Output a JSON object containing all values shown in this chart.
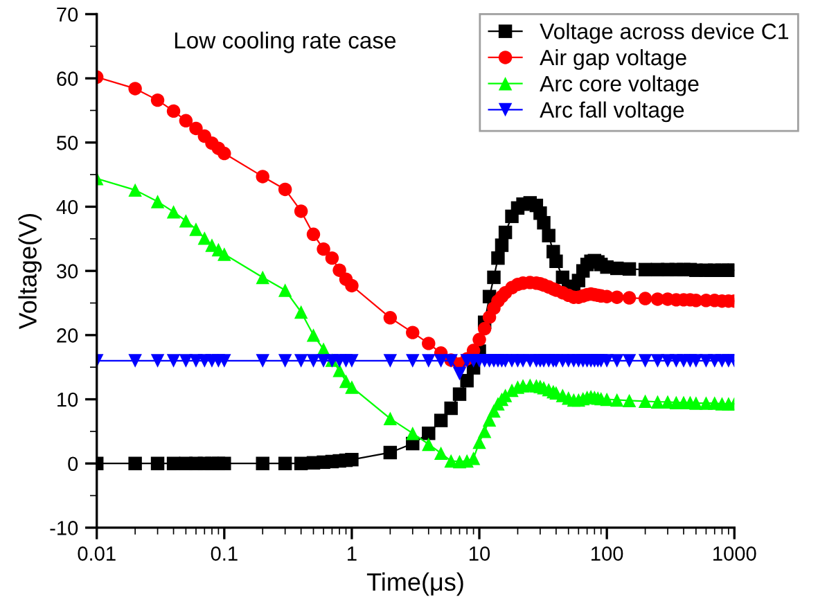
{
  "chart_data": {
    "type": "line",
    "xlabel": "Time(μs)",
    "ylabel": "Voltage(V)",
    "log": "x",
    "annotations": [
      "Low cooling rate case"
    ],
    "x": [
      0.01,
      0.02,
      0.03,
      0.04,
      0.05,
      0.06,
      0.07,
      0.08,
      0.09,
      0.1,
      0.2,
      0.3,
      0.4,
      0.5,
      0.6,
      0.7,
      0.8,
      0.9,
      1,
      2,
      3,
      4,
      5,
      6,
      7,
      8,
      9,
      10,
      11,
      12,
      13,
      14,
      15,
      16,
      18,
      20,
      22,
      25,
      28,
      30,
      32,
      35,
      38,
      40,
      45,
      50,
      55,
      60,
      65,
      70,
      75,
      80,
      85,
      90,
      100,
      120,
      150,
      200,
      250,
      300,
      350,
      400,
      450,
      500,
      600,
      700,
      800,
      900,
      1000
    ],
    "series": [
      {
        "name": "Voltage across device C1",
        "color": "#000000",
        "marker": "square",
        "values": [
          0,
          0,
          0,
          0,
          0,
          0,
          0,
          0,
          0,
          0,
          0,
          0,
          0,
          0.1,
          0.2,
          0.3,
          0.4,
          0.5,
          0.6,
          1.7,
          3.1,
          4.7,
          6.7,
          8.6,
          10.8,
          12.9,
          14.9,
          17.5,
          22,
          26,
          29,
          32,
          34,
          36,
          38.5,
          39.8,
          40.4,
          40.6,
          40.2,
          39,
          37.5,
          35.5,
          33,
          31.5,
          29,
          27.6,
          27.4,
          28.5,
          30,
          31,
          31.5,
          31.6,
          31.4,
          31,
          30.6,
          30.4,
          30.3,
          30.2,
          30.2,
          30.2,
          30.2,
          30.2,
          30.2,
          30.1,
          30.1,
          30.1,
          30.1,
          30.1,
          30.1
        ]
      },
      {
        "name": "Air gap voltage",
        "color": "#ff0000",
        "marker": "circle",
        "values": [
          60.2,
          58.4,
          56.6,
          54.9,
          53.4,
          52.2,
          51.0,
          49.9,
          49.1,
          48.3,
          44.7,
          42.7,
          39.3,
          35.7,
          33.4,
          32.0,
          30.1,
          28.7,
          27.7,
          22.7,
          20.4,
          18.7,
          17.2,
          16.1,
          15.5,
          16.3,
          17.6,
          19.3,
          21,
          22.8,
          24.2,
          25.3,
          26,
          26.6,
          27.4,
          27.9,
          28.1,
          28.2,
          28.1,
          28,
          27.8,
          27.5,
          27.2,
          27,
          26.6,
          26.2,
          25.9,
          25.9,
          26.1,
          26.3,
          26.4,
          26.3,
          26.2,
          26.1,
          26,
          25.9,
          25.8,
          25.7,
          25.6,
          25.6,
          25.5,
          25.5,
          25.5,
          25.4,
          25.4,
          25.4,
          25.3,
          25.3,
          25.3
        ]
      },
      {
        "name": "Arc core voltage",
        "color": "#00ff00",
        "marker": "triangle",
        "values": [
          44.4,
          42.6,
          40.8,
          39.2,
          37.8,
          36.5,
          35.1,
          34.0,
          33.3,
          32.6,
          29.0,
          27.0,
          23.6,
          20.0,
          17.8,
          16.1,
          14.5,
          12.8,
          11.9,
          7.0,
          4.7,
          3.0,
          1.6,
          0.4,
          0.3,
          0.4,
          0.8,
          3.3,
          5,
          6.8,
          8.2,
          9.3,
          10,
          10.6,
          11.4,
          11.9,
          12.1,
          12.2,
          12.1,
          12,
          11.8,
          11.5,
          11.2,
          11,
          10.6,
          10.2,
          9.9,
          9.9,
          10.1,
          10.3,
          10.4,
          10.3,
          10.2,
          10.1,
          10,
          9.9,
          9.8,
          9.7,
          9.6,
          9.6,
          9.5,
          9.5,
          9.5,
          9.4,
          9.4,
          9.4,
          9.3,
          9.3,
          9.3
        ]
      },
      {
        "name": "Arc fall voltage",
        "color": "#0000ff",
        "marker": "triangle_down",
        "values": [
          16,
          16,
          16,
          16,
          16,
          16,
          16,
          16,
          16,
          16,
          16,
          16,
          16,
          16,
          16,
          16,
          16,
          16,
          16,
          16,
          16,
          16,
          16,
          16,
          14,
          16,
          16,
          16,
          16,
          16,
          16,
          16,
          16,
          16,
          16,
          16,
          16,
          16,
          16,
          16,
          16,
          16,
          16,
          16,
          16,
          16,
          16,
          16,
          16,
          16,
          16,
          16,
          16,
          16,
          16,
          16,
          16,
          16,
          16,
          16,
          16,
          16,
          16,
          16,
          16,
          16,
          16,
          16,
          16
        ]
      }
    ],
    "xlim": [
      0.01,
      1000
    ],
    "xticks": [
      0.01,
      0.1,
      1,
      10,
      100,
      1000
    ],
    "ylim": [
      -10,
      70
    ],
    "yticks": [
      -10,
      0,
      10,
      20,
      30,
      40,
      50,
      60,
      70
    ],
    "grid": false,
    "legend": "top right"
  }
}
